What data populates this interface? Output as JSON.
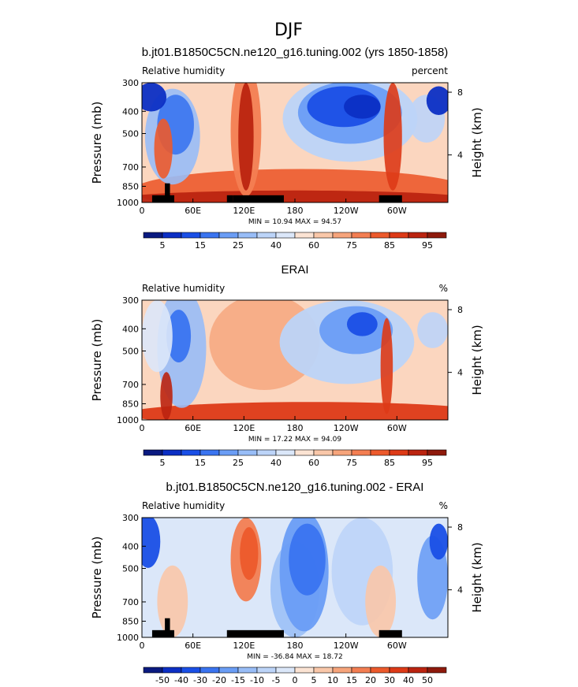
{
  "figure_title": "DJF",
  "chart_data": [
    {
      "type": "heatmap",
      "title": "b.jt01.B1850C5CN.ne120_g16.tuning.002 (yrs 1850-1858)",
      "left_label": "Relative humidity",
      "right_label": "percent",
      "ylabel": "Pressure (mb)",
      "y2label": "Height (km)",
      "x_ticks": [
        "0",
        "60E",
        "120E",
        "180",
        "120W",
        "60W"
      ],
      "x_tick_lon": [
        0,
        60,
        120,
        180,
        240,
        300
      ],
      "xlim": [
        0,
        360
      ],
      "y_ticks": [
        300,
        400,
        500,
        700,
        850,
        1000
      ],
      "ylim": [
        1000,
        300
      ],
      "y2_ticks": [
        8,
        4
      ],
      "stats": "MIN =   10.94   MAX =   94.57",
      "colorbar_labels": [
        "5",
        "15",
        "25",
        "40",
        "60",
        "75",
        "85",
        "95"
      ],
      "colorbar_colors": [
        "#0a1a80",
        "#0c2fc4",
        "#1a4fe6",
        "#3a74f0",
        "#6a9df5",
        "#98bdf7",
        "#bcd4f8",
        "#dbe7f9",
        "#fbe3d3",
        "#f9c7a9",
        "#f6a47b",
        "#f37e52",
        "#ec5a2c",
        "#dd3a17",
        "#bb2410",
        "#8e1a0c"
      ],
      "field_min": 10.94,
      "field_max": 94.57,
      "topography_lon": [
        [
          12,
          38
        ],
        [
          27,
          33
        ],
        [
          100,
          107
        ],
        [
          107,
          167
        ],
        [
          279,
          306
        ]
      ]
    },
    {
      "type": "heatmap",
      "title": "ERAI",
      "left_label": "Relative humidity",
      "right_label": "%",
      "ylabel": "Pressure (mb)",
      "y2label": "Height (km)",
      "x_ticks": [
        "0",
        "60E",
        "120E",
        "180",
        "120W",
        "60W"
      ],
      "x_tick_lon": [
        0,
        60,
        120,
        180,
        240,
        300
      ],
      "xlim": [
        0,
        360
      ],
      "y_ticks": [
        300,
        400,
        500,
        700,
        850,
        1000
      ],
      "ylim": [
        1000,
        300
      ],
      "y2_ticks": [
        8,
        4
      ],
      "stats": "MIN =   17.22   MAX =   94.09",
      "colorbar_labels": [
        "5",
        "15",
        "25",
        "40",
        "60",
        "75",
        "85",
        "95"
      ],
      "colorbar_colors": [
        "#0a1a80",
        "#0c2fc4",
        "#1a4fe6",
        "#3a74f0",
        "#6a9df5",
        "#98bdf7",
        "#bcd4f8",
        "#dbe7f9",
        "#fbe3d3",
        "#f9c7a9",
        "#f6a47b",
        "#f37e52",
        "#ec5a2c",
        "#dd3a17",
        "#bb2410",
        "#8e1a0c"
      ],
      "field_min": 17.22,
      "field_max": 94.09,
      "topography_lon": []
    },
    {
      "type": "heatmap",
      "title": "b.jt01.B1850C5CN.ne120_g16.tuning.002 - ERAI",
      "left_label": "Relative humidity",
      "right_label": "%",
      "ylabel": "Pressure (mb)",
      "y2label": "Height (km)",
      "x_ticks": [
        "0",
        "60E",
        "120E",
        "180",
        "120W",
        "60W"
      ],
      "x_tick_lon": [
        0,
        60,
        120,
        180,
        240,
        300
      ],
      "xlim": [
        0,
        360
      ],
      "y_ticks": [
        300,
        400,
        500,
        700,
        850,
        1000
      ],
      "ylim": [
        1000,
        300
      ],
      "y2_ticks": [
        8,
        4
      ],
      "stats": "MIN = -36.84   MAX =   18.72",
      "colorbar_labels": [
        "-50",
        "-40",
        "-30",
        "-20",
        "-15",
        "-10",
        "-5",
        "0",
        "5",
        "10",
        "15",
        "20",
        "30",
        "40",
        "50"
      ],
      "colorbar_colors": [
        "#0a1a80",
        "#0c2fc4",
        "#1a4fe6",
        "#3a74f0",
        "#6a9df5",
        "#98bdf7",
        "#bcd4f8",
        "#dbe7f9",
        "#fbe3d3",
        "#f9c7a9",
        "#f6a47b",
        "#f37e52",
        "#ec5a2c",
        "#dd3a17",
        "#bb2410",
        "#8e1a0c"
      ],
      "field_min": -36.84,
      "field_max": 18.72,
      "topography_lon": [
        [
          12,
          38
        ],
        [
          27,
          33
        ],
        [
          100,
          167
        ],
        [
          279,
          306
        ]
      ]
    }
  ]
}
